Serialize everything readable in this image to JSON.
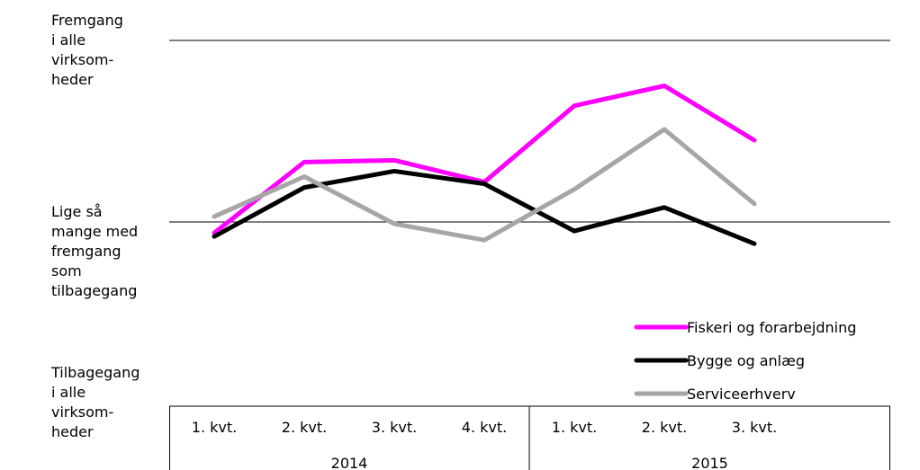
{
  "y_axis_labels": {
    "top": "Fremgang\ni alle\nvirksom-\nheder",
    "middle": "Lige så\nmange med\nfremgang\nsom\ntilbagegang",
    "bottom": "Tilbagegang\ni alle\nvirksom-\nheder"
  },
  "chart_data": {
    "type": "line",
    "categories": [
      "1. kvt.",
      "2. kvt.",
      "3. kvt.",
      "4. kvt.",
      "1. kvt.",
      "2. kvt.",
      "3. kvt."
    ],
    "year_groups": [
      {
        "label": "2014",
        "count": 4
      },
      {
        "label": "2015",
        "count": 3
      }
    ],
    "ylim": [
      -1,
      1
    ],
    "reference_lines": [
      1,
      0
    ],
    "legend_position": "right",
    "series": [
      {
        "name": "Fiskeri og forarbejdning",
        "color": "#ff00ff",
        "values": [
          -0.06,
          0.33,
          0.34,
          0.22,
          0.64,
          0.75,
          0.45
        ]
      },
      {
        "name": "Bygge og anlæg",
        "color": "#000000",
        "values": [
          -0.08,
          0.19,
          0.28,
          0.21,
          -0.05,
          0.08,
          -0.12
        ]
      },
      {
        "name": "Serviceerhverv",
        "color": "#a6a6a6",
        "values": [
          0.03,
          0.25,
          -0.01,
          -0.1,
          0.18,
          0.51,
          0.1
        ]
      }
    ]
  }
}
